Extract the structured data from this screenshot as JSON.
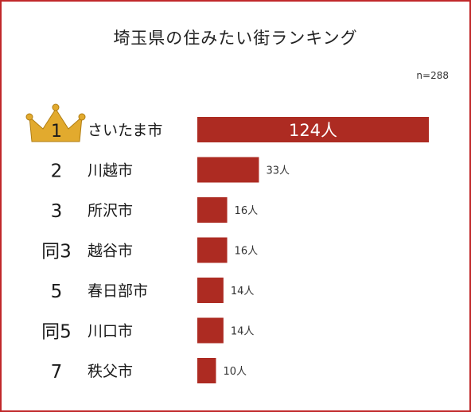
{
  "title": "埼玉県の住みたい街ランキング",
  "sample_note": "n=288",
  "colors": {
    "bar": "#ad2b22",
    "crown": "#e2aa2e",
    "frame": "#c0282a"
  },
  "chart_data": {
    "type": "bar",
    "orientation": "horizontal",
    "title": "埼玉県の住みたい街ランキング",
    "unit": "人",
    "ranks": [
      "1",
      "2",
      "3",
      "同3",
      "5",
      "同5",
      "7"
    ],
    "categories": [
      "さいたま市",
      "川越市",
      "所沢市",
      "越谷市",
      "春日部市",
      "川口市",
      "秩父市"
    ],
    "values": [
      124,
      33,
      16,
      16,
      14,
      14,
      10
    ],
    "value_labels": [
      "124人",
      "33人",
      "16人",
      "16人",
      "14人",
      "14人",
      "10人"
    ],
    "first_rank_icon": "crown-icon",
    "xlim": [
      0,
      124
    ],
    "grid": false,
    "legend": "none"
  }
}
